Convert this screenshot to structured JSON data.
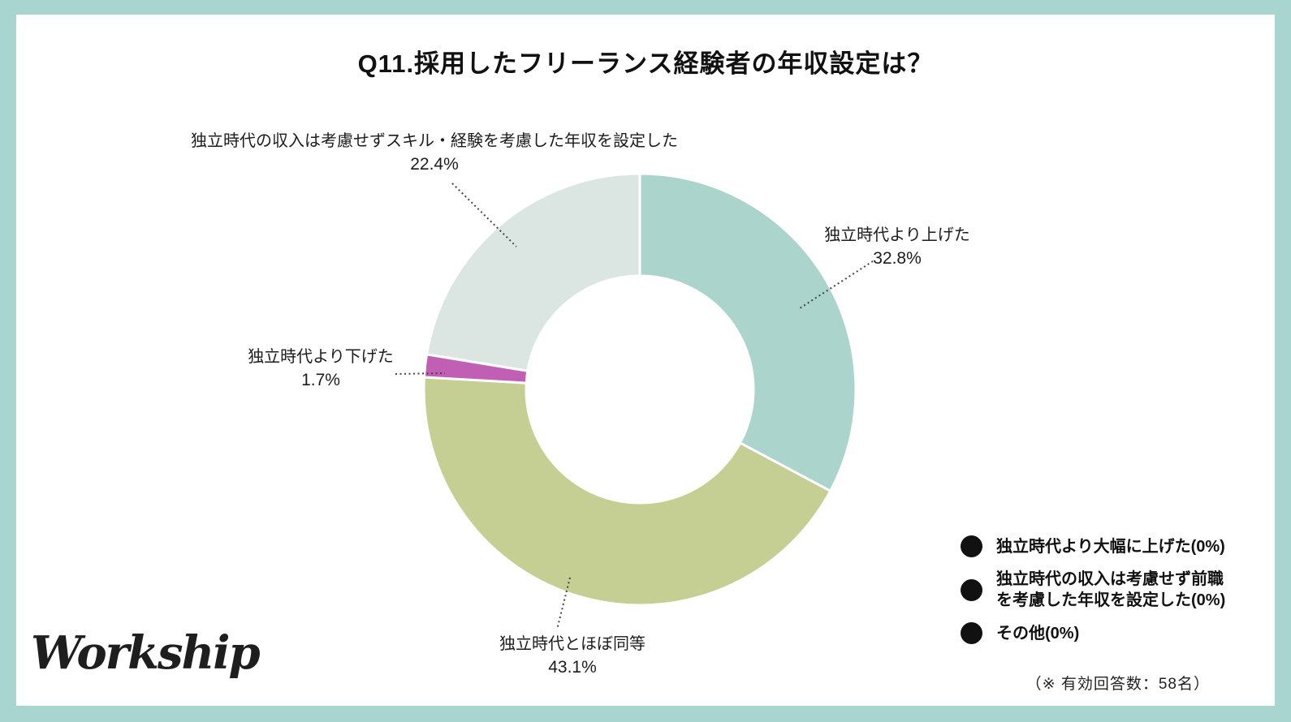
{
  "branding": {
    "logo_text": "Workship"
  },
  "chart_data": {
    "type": "pie",
    "subtype": "donut",
    "title": "Q11.採用したフリーランス経験者の年収設定は？",
    "start_angle_deg": 0,
    "direction": "clockwise",
    "inner_radius_ratio": 0.52,
    "background_color": "#ffffff",
    "frame_color": "#a8d5cf",
    "slices": [
      {
        "label": "独立時代より上げた",
        "value": 32.8,
        "display": "32.8%",
        "color": "#abd4cc"
      },
      {
        "label": "独立時代とほぼ同等",
        "value": 43.1,
        "display": "43.1%",
        "color": "#c6cf93"
      },
      {
        "label": "独立時代より下げた",
        "value": 1.7,
        "display": "1.7%",
        "color": "#c05fb4"
      },
      {
        "label": "独立時代の収入は考慮せずスキル・経験を考慮した年収を設定した",
        "value": 22.4,
        "display": "22.4%",
        "color": "#dbe6e3"
      }
    ],
    "legend": {
      "position": "bottom-right",
      "items": [
        {
          "label": "独立時代より大幅に上げた(0%)",
          "value": 0,
          "bullet_color": "#111111"
        },
        {
          "label": "独立時代の収入は考慮せず前職を考慮した年収を設定した(0%)",
          "value": 0,
          "bullet_color": "#111111"
        },
        {
          "label": "その他(0%)",
          "value": 0,
          "bullet_color": "#111111"
        }
      ]
    },
    "footnote": "（※ 有効回答数：58名）"
  }
}
